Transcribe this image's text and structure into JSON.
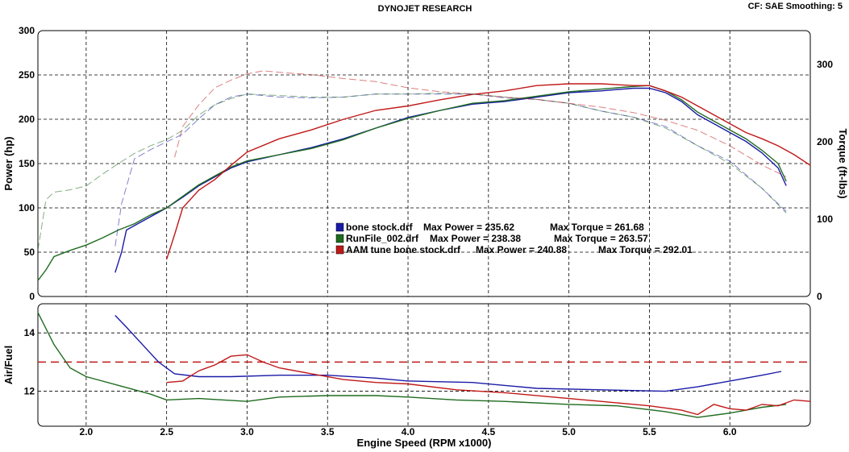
{
  "header": {
    "title": "DYNOJET RESEARCH",
    "settings": "CF: SAE  Smoothing: 5"
  },
  "colors": {
    "bone_stock": "#1a1aa8",
    "runfile": "#1f6b1f",
    "aam_tune": "#c01818",
    "afr_target": "#c01818",
    "grid": "#000000"
  },
  "chart_data": [
    {
      "id": "power_torque",
      "type": "line",
      "xlabel": "Engine Speed (RPM x1000)",
      "ylabel": "Power (hp)",
      "y2label": "Torque (ft-lbs)",
      "xlim": [
        1.7,
        6.5
      ],
      "ylim": [
        0,
        300
      ],
      "y2lim": [
        0,
        344
      ],
      "x_ticks": [
        2.0,
        2.5,
        3.0,
        3.5,
        4.0,
        4.5,
        5.0,
        5.5,
        6.0
      ],
      "x_tick_labels": [
        "2.0",
        "2.5",
        "3.0",
        "3.5",
        "4.0",
        "4.5",
        "5.0",
        "5.5",
        "6.0"
      ],
      "y_ticks": [
        0,
        50,
        100,
        150,
        200,
        250,
        300
      ],
      "y_tick_labels": [
        "0",
        "50",
        "100",
        "150",
        "200",
        "250",
        "300"
      ],
      "y2_ticks": [
        0,
        100,
        200,
        300
      ],
      "y2_tick_labels": [
        "0",
        "100",
        "200",
        "300"
      ],
      "grid": true,
      "legend_position": "center",
      "legend": [
        {
          "file": "bone stock.drf",
          "max_power": "Max Power = 235.62",
          "max_torque": "Max Torque = 261.68"
        },
        {
          "file": "RunFile_002.drf",
          "max_power": "Max Power = 238.38",
          "max_torque": "Max Torque = 263.57"
        },
        {
          "file": "AAM tune bone stock.drf",
          "max_power": "Max Power = 240.88",
          "max_torque": "Max Torque = 292.01"
        }
      ],
      "series": [
        {
          "name": "bone stock.drf power",
          "axis": "power",
          "style": "solid",
          "color_key": "bone_stock",
          "x": [
            2.18,
            2.22,
            2.25,
            2.3,
            2.4,
            2.5,
            2.6,
            2.7,
            2.8,
            2.9,
            3.0,
            3.2,
            3.4,
            3.6,
            3.8,
            4.0,
            4.2,
            4.4,
            4.6,
            4.8,
            5.0,
            5.2,
            5.4,
            5.5,
            5.6,
            5.7,
            5.8,
            5.9,
            6.0,
            6.1,
            6.2,
            6.3,
            6.35
          ],
          "values": [
            27,
            50,
            75,
            80,
            90,
            100,
            112,
            125,
            135,
            145,
            152,
            160,
            168,
            178,
            190,
            202,
            210,
            217,
            220,
            225,
            230,
            232,
            235,
            235,
            230,
            220,
            205,
            195,
            185,
            175,
            162,
            145,
            125
          ]
        },
        {
          "name": "RunFile_002.drf power",
          "axis": "power",
          "style": "solid",
          "color_key": "runfile",
          "x": [
            1.7,
            1.75,
            1.8,
            1.9,
            2.0,
            2.1,
            2.2,
            2.3,
            2.4,
            2.5,
            2.6,
            2.7,
            2.8,
            2.9,
            3.0,
            3.2,
            3.4,
            3.6,
            3.8,
            4.0,
            4.2,
            4.4,
            4.6,
            4.8,
            5.0,
            5.2,
            5.4,
            5.5,
            5.6,
            5.7,
            5.8,
            5.9,
            6.0,
            6.1,
            6.2,
            6.3,
            6.35
          ],
          "values": [
            18,
            30,
            45,
            52,
            58,
            66,
            75,
            82,
            92,
            100,
            113,
            126,
            136,
            146,
            153,
            160,
            167,
            177,
            190,
            201,
            210,
            218,
            221,
            226,
            231,
            234,
            237,
            238,
            232,
            222,
            208,
            198,
            188,
            178,
            165,
            150,
            130
          ]
        },
        {
          "name": "AAM tune bone stock.drf power",
          "axis": "power",
          "style": "solid",
          "color_key": "aam_tune",
          "x": [
            2.5,
            2.55,
            2.6,
            2.7,
            2.8,
            2.9,
            3.0,
            3.2,
            3.4,
            3.6,
            3.8,
            4.0,
            4.2,
            4.4,
            4.6,
            4.8,
            5.0,
            5.2,
            5.4,
            5.5,
            5.6,
            5.7,
            5.8,
            5.9,
            6.0,
            6.1,
            6.2,
            6.3,
            6.4,
            6.5
          ],
          "values": [
            42,
            70,
            100,
            120,
            132,
            148,
            163,
            178,
            188,
            200,
            210,
            215,
            222,
            228,
            232,
            238,
            240,
            240,
            238,
            238,
            232,
            225,
            215,
            205,
            195,
            185,
            178,
            170,
            160,
            148
          ]
        },
        {
          "name": "bone stock.drf torque",
          "axis": "torque",
          "style": "dashed",
          "color_key": "bone_stock",
          "x": [
            2.18,
            2.22,
            2.3,
            2.4,
            2.5,
            2.6,
            2.7,
            2.8,
            2.9,
            3.0,
            3.2,
            3.4,
            3.6,
            3.8,
            4.0,
            4.2,
            4.4,
            4.6,
            4.8,
            5.0,
            5.2,
            5.4,
            5.6,
            5.8,
            6.0,
            6.2,
            6.35
          ],
          "values": [
            65,
            120,
            178,
            190,
            200,
            210,
            230,
            248,
            258,
            262,
            258,
            257,
            258,
            262,
            262,
            262,
            262,
            257,
            255,
            250,
            240,
            232,
            220,
            195,
            175,
            140,
            110
          ]
        },
        {
          "name": "RunFile_002.drf torque",
          "axis": "torque",
          "style": "dashed",
          "color_key": "runfile",
          "x": [
            1.7,
            1.75,
            1.8,
            1.9,
            2.0,
            2.1,
            2.2,
            2.3,
            2.4,
            2.5,
            2.6,
            2.7,
            2.8,
            2.9,
            3.0,
            3.2,
            3.4,
            3.6,
            3.8,
            4.0,
            4.2,
            4.4,
            4.6,
            4.8,
            5.0,
            5.2,
            5.4,
            5.6,
            5.8,
            6.0,
            6.2,
            6.35
          ],
          "values": [
            60,
            125,
            135,
            138,
            143,
            158,
            172,
            185,
            195,
            203,
            215,
            235,
            248,
            256,
            262,
            260,
            258,
            258,
            262,
            262,
            263,
            262,
            258,
            255,
            250,
            240,
            232,
            218,
            195,
            172,
            140,
            108
          ]
        },
        {
          "name": "AAM tune bone stock.drf torque",
          "axis": "torque",
          "style": "dashed",
          "color_key": "aam_tune",
          "x": [
            2.55,
            2.6,
            2.7,
            2.8,
            2.9,
            3.0,
            3.1,
            3.2,
            3.4,
            3.6,
            3.8,
            4.0,
            4.2,
            4.4,
            4.6,
            4.8,
            5.0,
            5.2,
            5.4,
            5.6,
            5.8,
            6.0,
            6.2,
            6.35
          ],
          "values": [
            180,
            220,
            248,
            270,
            280,
            288,
            292,
            290,
            287,
            282,
            278,
            270,
            265,
            262,
            258,
            255,
            250,
            245,
            238,
            228,
            215,
            195,
            170,
            155
          ]
        }
      ]
    },
    {
      "id": "air_fuel",
      "type": "line",
      "xlabel": "Engine Speed (RPM x1000)",
      "ylabel": "Air/Fuel",
      "xlim": [
        1.7,
        6.5
      ],
      "ylim": [
        10.8,
        15.0
      ],
      "y_ticks": [
        12,
        14
      ],
      "y_tick_labels": [
        "12",
        "14"
      ],
      "x_ticks": [
        2.0,
        2.5,
        3.0,
        3.5,
        4.0,
        4.5,
        5.0,
        5.5,
        6.0
      ],
      "x_tick_labels": [
        "2.0",
        "2.5",
        "3.0",
        "3.5",
        "4.0",
        "4.5",
        "5.0",
        "5.5",
        "6.0"
      ],
      "grid": true,
      "target_afr": 13.0,
      "series": [
        {
          "name": "bone stock.drf air/fuel",
          "color_key": "bone_stock",
          "x": [
            2.18,
            2.25,
            2.35,
            2.45,
            2.55,
            2.7,
            2.9,
            3.2,
            3.5,
            3.8,
            4.0,
            4.4,
            4.8,
            5.2,
            5.6,
            5.8,
            6.0,
            6.2,
            6.32
          ],
          "values": [
            14.6,
            14.2,
            13.6,
            13.0,
            12.6,
            12.5,
            12.5,
            12.55,
            12.55,
            12.45,
            12.35,
            12.3,
            12.1,
            12.05,
            12.0,
            12.15,
            12.35,
            12.55,
            12.68
          ]
        },
        {
          "name": "RunFile_002.drf air/fuel",
          "color_key": "runfile",
          "x": [
            1.7,
            1.8,
            1.9,
            2.0,
            2.2,
            2.4,
            2.5,
            2.7,
            3.0,
            3.2,
            3.5,
            3.8,
            4.0,
            4.3,
            4.6,
            5.0,
            5.3,
            5.6,
            5.8,
            6.0,
            6.2,
            6.35
          ],
          "values": [
            14.7,
            13.6,
            12.8,
            12.5,
            12.2,
            11.9,
            11.7,
            11.75,
            11.65,
            11.8,
            11.85,
            11.85,
            11.8,
            11.7,
            11.65,
            11.55,
            11.5,
            11.3,
            11.1,
            11.25,
            11.45,
            11.55
          ]
        },
        {
          "name": "AAM tune bone stock.drf air/fuel",
          "color_key": "aam_tune",
          "x": [
            2.5,
            2.6,
            2.7,
            2.8,
            2.9,
            3.0,
            3.1,
            3.2,
            3.4,
            3.6,
            3.8,
            4.0,
            4.3,
            4.6,
            4.9,
            5.2,
            5.5,
            5.7,
            5.8,
            5.9,
            6.0,
            6.1,
            6.2,
            6.3,
            6.4,
            6.5
          ],
          "values": [
            12.3,
            12.35,
            12.7,
            12.9,
            13.2,
            13.25,
            13.0,
            12.8,
            12.6,
            12.4,
            12.3,
            12.25,
            12.05,
            11.95,
            11.8,
            11.65,
            11.5,
            11.35,
            11.2,
            11.55,
            11.4,
            11.35,
            11.55,
            11.5,
            11.7,
            11.65
          ]
        }
      ]
    }
  ]
}
